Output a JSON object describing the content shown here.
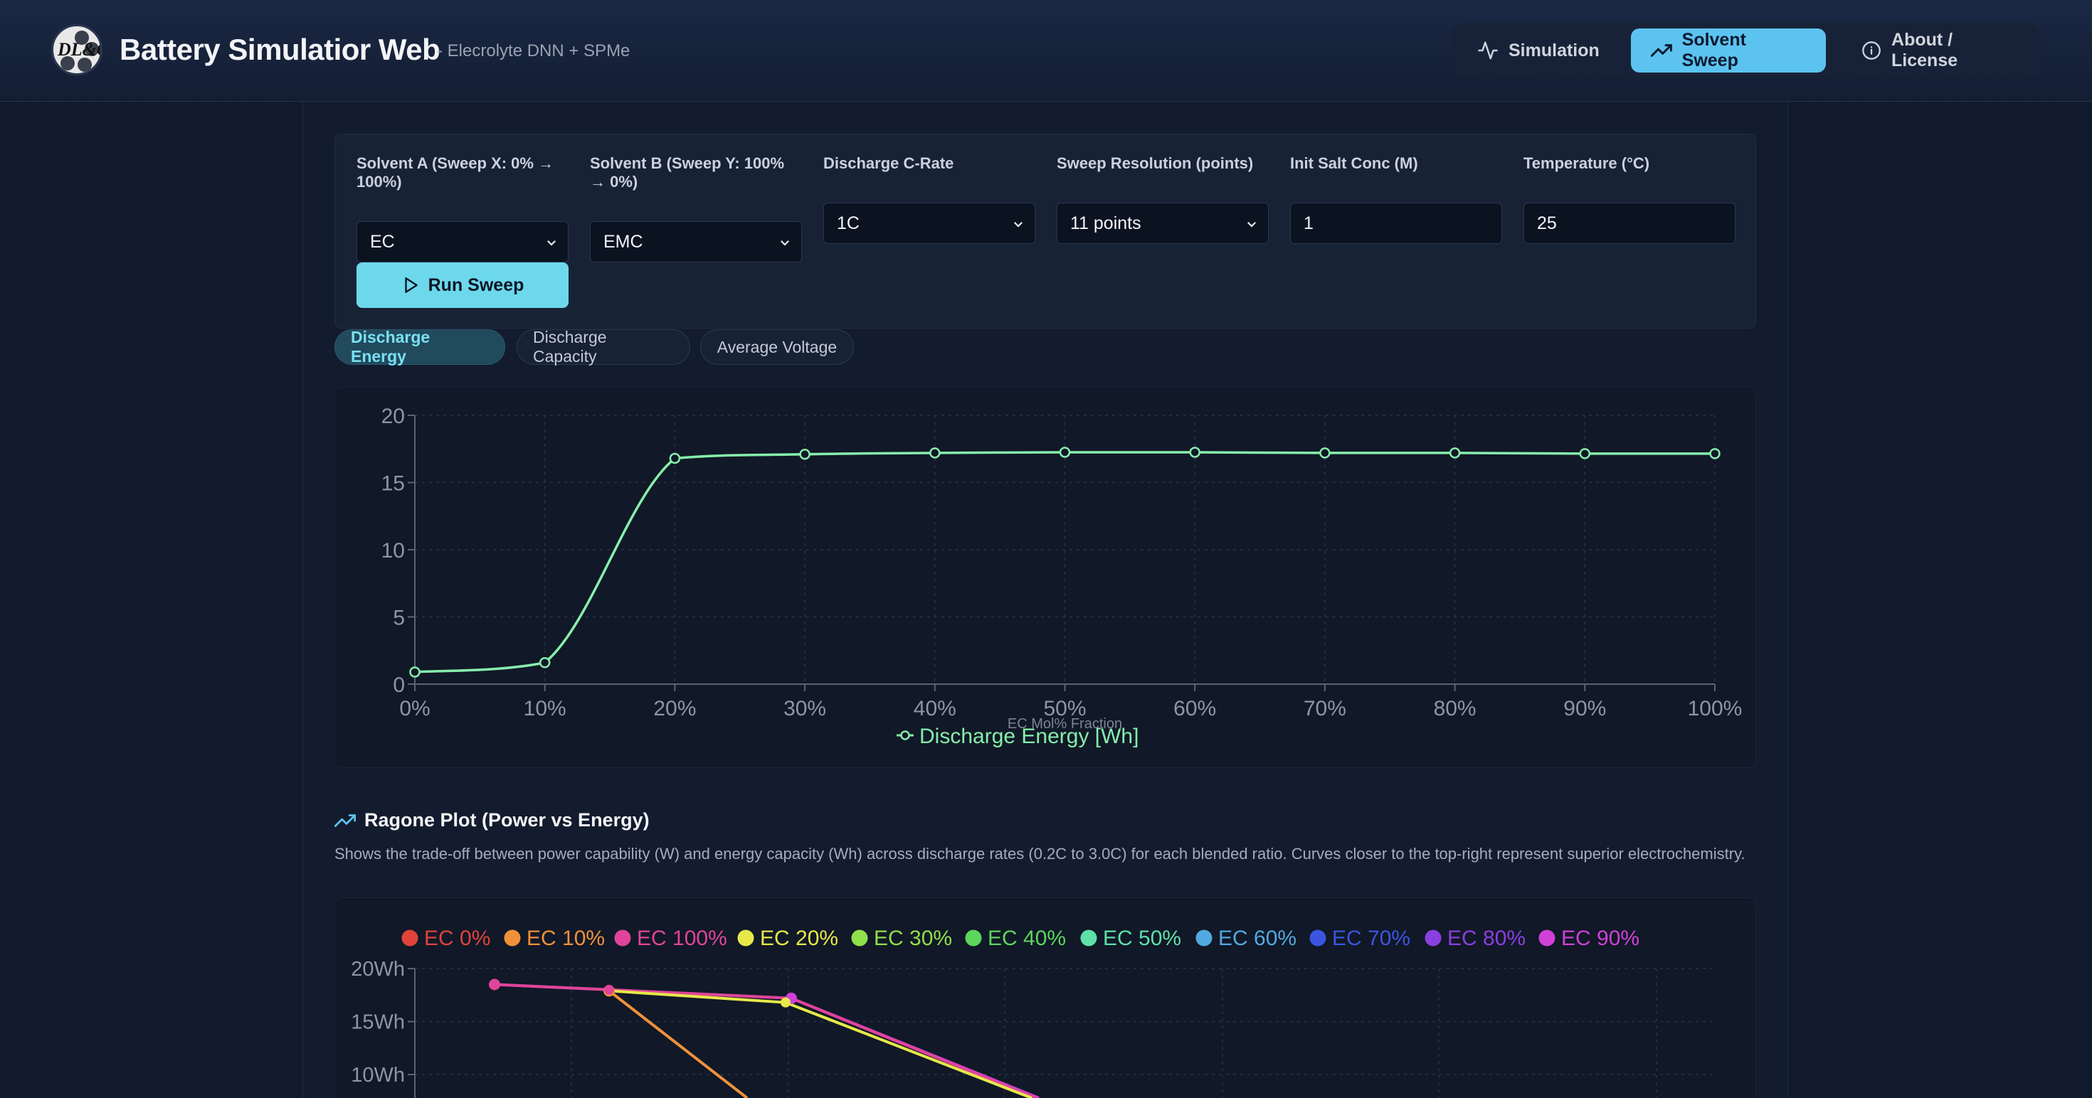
{
  "header": {
    "app_title": "Battery Simulatior Web",
    "app_subtitle": "- Elecrolyte DNN + SPMe",
    "logo_text": "DL&C",
    "nav": [
      {
        "label": "Simulation",
        "icon": "activity-icon",
        "active": false
      },
      {
        "label": "Solvent Sweep",
        "icon": "trending-up-icon",
        "active": true
      },
      {
        "label": "About / License",
        "icon": "info-icon",
        "active": false
      }
    ]
  },
  "controls": {
    "solvent_a": {
      "label": "Solvent A (Sweep X: 0% → 100%)",
      "value": "EC"
    },
    "solvent_b": {
      "label": "Solvent B (Sweep Y: 100% → 0%)",
      "value": "EMC"
    },
    "c_rate": {
      "label": "Discharge C-Rate",
      "value": "1C"
    },
    "resolution": {
      "label": "Sweep Resolution (points)",
      "value": "11 points"
    },
    "salt_conc": {
      "label": "Init Salt Conc (M)",
      "value": "1"
    },
    "temperature": {
      "label": "Temperature (°C)",
      "value": "25"
    },
    "run_label": "Run Sweep"
  },
  "tabs": [
    {
      "label": "Discharge Energy",
      "active": true
    },
    {
      "label": "Discharge Capacity",
      "active": false
    },
    {
      "label": "Average Voltage",
      "active": false
    }
  ],
  "ragone": {
    "title": "Ragone Plot (Power vs Energy)",
    "description": "Shows the trade-off between power capability (W) and energy capacity (Wh) across discharge rates (0.2C to 3.0C) for each blended ratio. Curves closer to the top-right represent superior electrochemistry."
  },
  "colors": {
    "accent": "#5cc3f0",
    "energy_line": "#86efac"
  },
  "chart_data": [
    {
      "type": "line",
      "xlabel": "EC Mol% Fraction",
      "ylabel": "",
      "x_tick_labels": [
        "0%",
        "10%",
        "20%",
        "30%",
        "40%",
        "50%",
        "60%",
        "70%",
        "80%",
        "90%",
        "100%"
      ],
      "x": [
        0,
        10,
        20,
        30,
        40,
        50,
        60,
        70,
        80,
        90,
        100
      ],
      "xlim": [
        0,
        100
      ],
      "ylim": [
        0,
        20
      ],
      "y_ticks": [
        0,
        5,
        10,
        15,
        20
      ],
      "grid": true,
      "legend_position": "bottom",
      "series": [
        {
          "name": "Discharge Energy [Wh]",
          "color": "#86efac",
          "values": [
            0.9,
            1.6,
            16.8,
            17.1,
            17.2,
            17.25,
            17.25,
            17.2,
            17.2,
            17.15,
            17.15
          ]
        }
      ]
    },
    {
      "type": "line",
      "xlabel": "",
      "ylabel": "",
      "y_tick_labels": [
        "20Wh",
        "15Wh",
        "10Wh"
      ],
      "y_ticks": [
        20,
        15,
        10
      ],
      "grid": true,
      "legend_position": "top",
      "series": [
        {
          "name": "EC 0%",
          "color": "#e0433b",
          "visible_points": []
        },
        {
          "name": "EC 10%",
          "color": "#f0913a",
          "visible_points": [
            {
              "energy": 18.5
            },
            {
              "energy": 17.9
            }
          ]
        },
        {
          "name": "EC 100%",
          "color": "#e0449a",
          "visible_points": [
            {
              "energy": 18.5
            },
            {
              "energy": 18.0
            },
            {
              "energy": 17.2
            }
          ]
        },
        {
          "name": "EC 20%",
          "color": "#e6e84a",
          "visible_points": [
            {
              "energy": 16.8
            }
          ]
        },
        {
          "name": "EC 30%",
          "color": "#8fe04a",
          "visible_points": []
        },
        {
          "name": "EC 40%",
          "color": "#5cd65c",
          "visible_points": []
        },
        {
          "name": "EC 50%",
          "color": "#5ee0a8",
          "visible_points": []
        },
        {
          "name": "EC 60%",
          "color": "#52a9e0",
          "visible_points": []
        },
        {
          "name": "EC 70%",
          "color": "#3b55e0",
          "visible_points": []
        },
        {
          "name": "EC 80%",
          "color": "#8a3fe0",
          "visible_points": []
        },
        {
          "name": "EC 90%",
          "color": "#d040d8",
          "visible_points": [
            {
              "energy": 17.2
            }
          ]
        }
      ]
    }
  ]
}
